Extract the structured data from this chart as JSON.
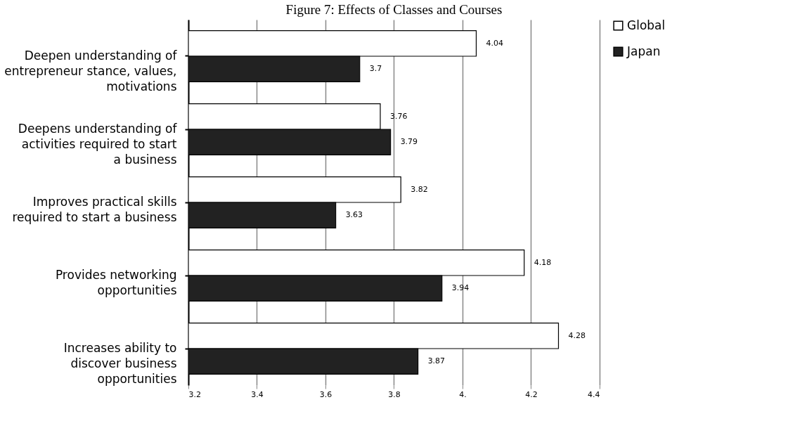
{
  "chart_data": {
    "type": "bar",
    "orientation": "horizontal",
    "title": "Figure 7: Effects of Classes and Courses",
    "categories": [
      "Deepen understanding of entrepreneur stance, values, motivations",
      "Deepens understanding of activities required to start a business",
      "Improves practical skills required to start a business",
      "Provides networking opportunities",
      "Increases ability to discover business opportunities"
    ],
    "series": [
      {
        "name": "Global",
        "color": "#ffffff",
        "values": [
          4.04,
          3.76,
          3.82,
          4.18,
          4.28
        ]
      },
      {
        "name": "Japan",
        "color": "#222222",
        "values": [
          3.7,
          3.79,
          3.63,
          3.94,
          3.87
        ]
      }
    ],
    "xlim": [
      3.2,
      4.4
    ],
    "xticks": [
      3.2,
      3.4,
      3.6,
      3.8,
      {
        "value": 4,
        "label": "4."
      },
      4.2,
      4.4
    ],
    "grid": "x",
    "legend": "right",
    "data_labels": true
  }
}
